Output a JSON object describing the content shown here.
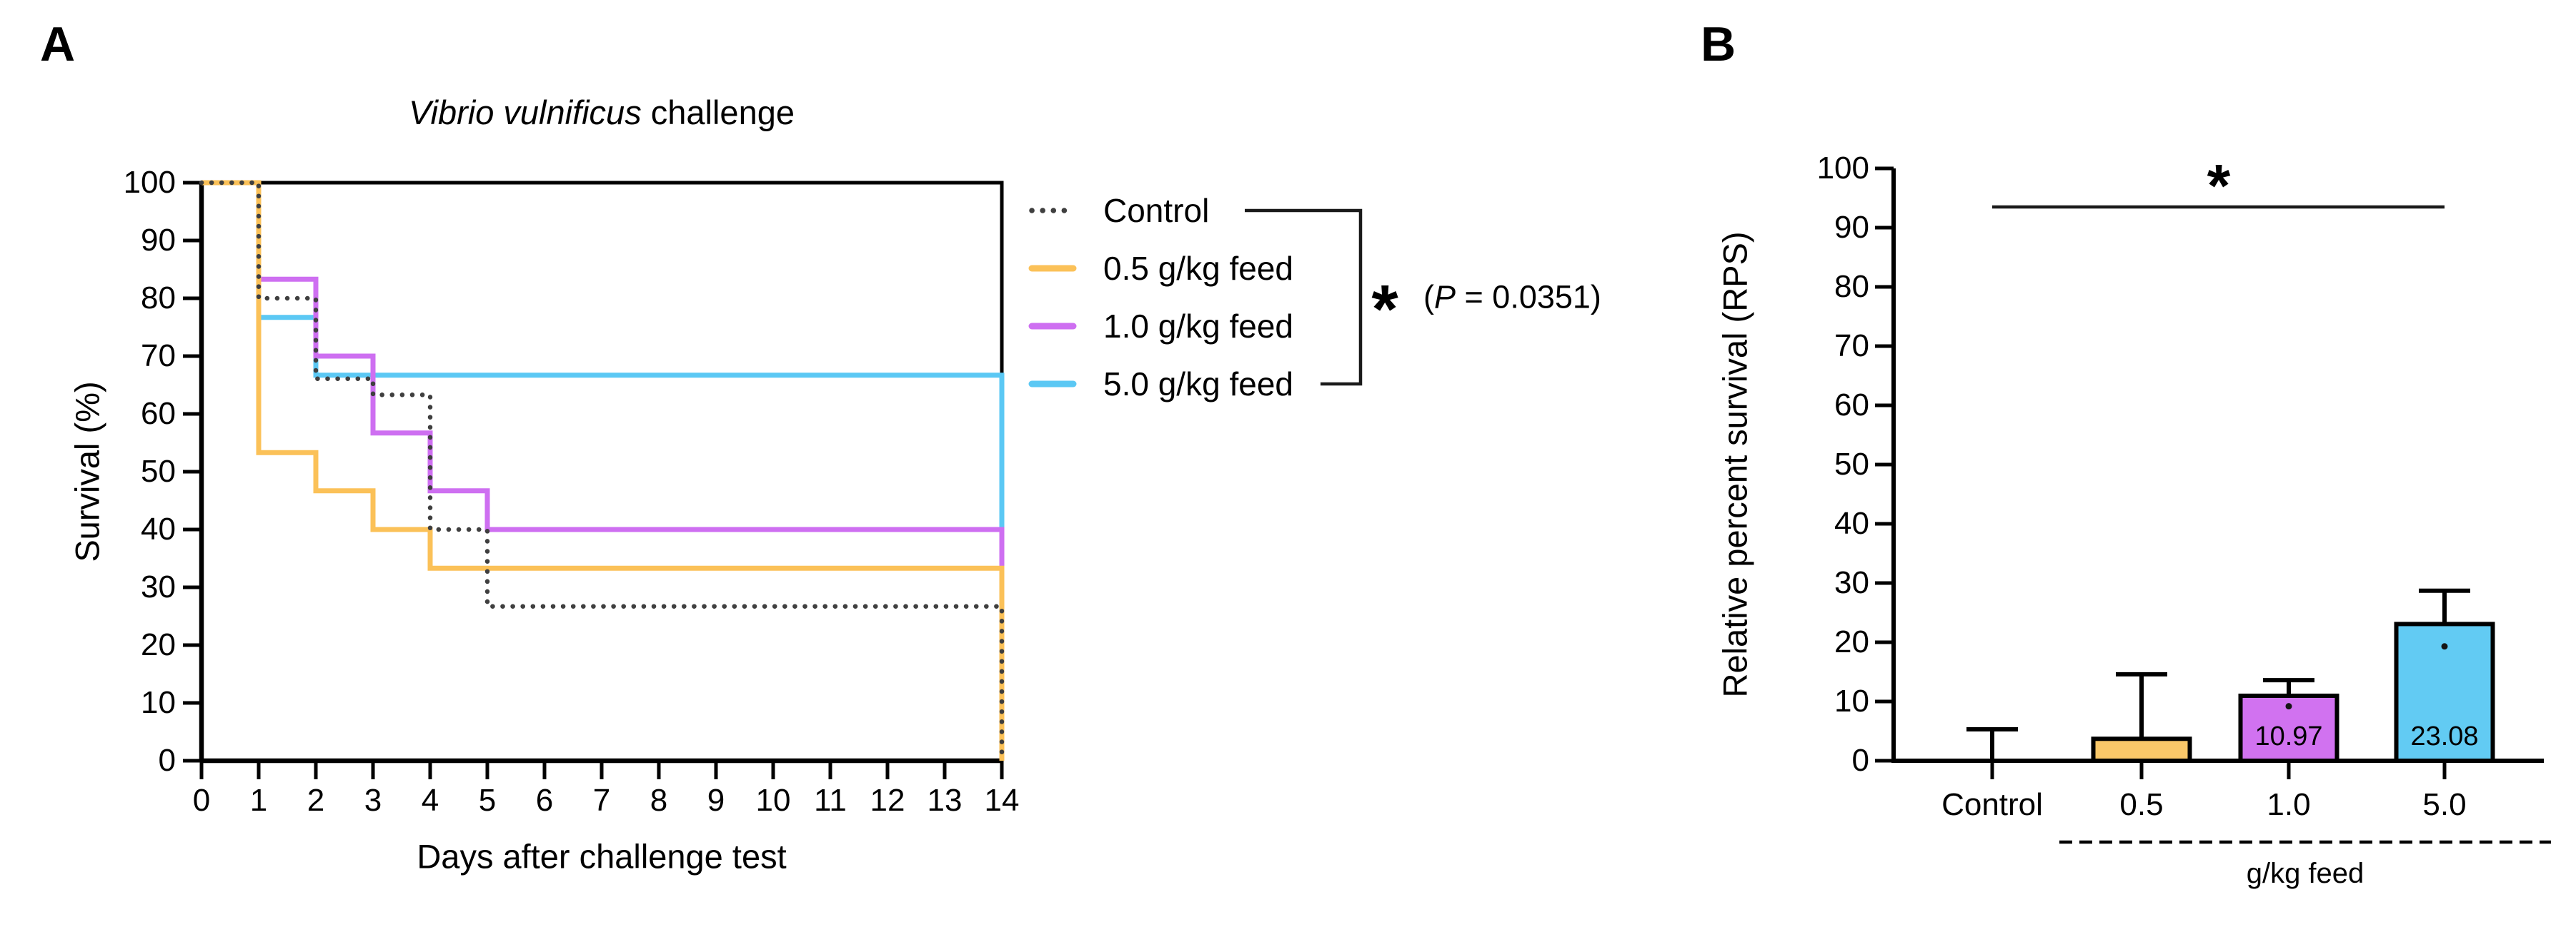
{
  "figure": {
    "panel_a": {
      "label": "A",
      "title_italic": "Vibrio vulnificus",
      "title_rest": " challenge",
      "xlabel": "Days after challenge test",
      "ylabel": "Survival (%)",
      "significance": {
        "asterisk": "*",
        "p_open": "(",
        "p_symbol": "P",
        "p_rest": " = 0.0351)"
      }
    },
    "panel_b": {
      "label": "B",
      "ylabel": "Relative percent survival (RPS)",
      "group_label": "g/kg feed",
      "significance": {
        "asterisk": "*"
      }
    }
  },
  "chart_data": [
    {
      "type": "line",
      "subtype": "kaplan-meier-step",
      "title": "Vibrio vulnificus challenge",
      "xlabel": "Days after challenge test",
      "ylabel": "Survival (%)",
      "xlim": [
        0,
        14
      ],
      "ylim": [
        0,
        100
      ],
      "x_ticks": [
        0,
        1,
        2,
        3,
        4,
        5,
        6,
        7,
        8,
        9,
        10,
        11,
        12,
        13,
        14
      ],
      "y_ticks": [
        0,
        10,
        20,
        30,
        40,
        50,
        60,
        70,
        80,
        90,
        100
      ],
      "grid": false,
      "frame": true,
      "legend_position": "right",
      "series": [
        {
          "name": "5.0 g/kg feed",
          "color": "#5BC8F4",
          "style": "solid",
          "points": [
            [
              0,
              100
            ],
            [
              1,
              100
            ],
            [
              1,
              76.7
            ],
            [
              2,
              76.7
            ],
            [
              2,
              66.7
            ],
            [
              14,
              66.7
            ],
            [
              14,
              0
            ]
          ]
        },
        {
          "name": "1.0 g/kg feed",
          "color": "#CE6FF1",
          "style": "solid",
          "points": [
            [
              0,
              100
            ],
            [
              1,
              100
            ],
            [
              1,
              83.3
            ],
            [
              2,
              83.3
            ],
            [
              2,
              70
            ],
            [
              3,
              70
            ],
            [
              3,
              56.7
            ],
            [
              4,
              56.7
            ],
            [
              4,
              46.7
            ],
            [
              5,
              46.7
            ],
            [
              5,
              40
            ],
            [
              14,
              40
            ],
            [
              14,
              0
            ]
          ]
        },
        {
          "name": "0.5 g/kg feed",
          "color": "#FBC158",
          "style": "solid",
          "points": [
            [
              0,
              100
            ],
            [
              1,
              100
            ],
            [
              1,
              53.3
            ],
            [
              2,
              53.3
            ],
            [
              2,
              46.7
            ],
            [
              3,
              46.7
            ],
            [
              3,
              40
            ],
            [
              4,
              40
            ],
            [
              4,
              33.3
            ],
            [
              14,
              33.3
            ],
            [
              14,
              0
            ]
          ]
        },
        {
          "name": "Control",
          "color": "#3F3F3F",
          "style": "dotted",
          "overlap_nudge_value": 66.7,
          "points": [
            [
              0,
              100
            ],
            [
              1,
              100
            ],
            [
              1,
              80
            ],
            [
              2,
              80
            ],
            [
              2,
              66.7
            ],
            [
              3,
              66.7
            ],
            [
              3,
              63.3
            ],
            [
              4,
              63.3
            ],
            [
              4,
              40
            ],
            [
              5,
              40
            ],
            [
              5,
              26.7
            ],
            [
              14,
              26.7
            ],
            [
              14,
              0
            ]
          ]
        }
      ],
      "legend_order": [
        "Control",
        "0.5 g/kg feed",
        "1.0 g/kg feed",
        "5.0 g/kg feed"
      ],
      "significance": {
        "groups": [
          "Control",
          "5.0 g/kg feed"
        ],
        "label": "*",
        "p_value": "P = 0.0351"
      }
    },
    {
      "type": "bar",
      "ylabel": "Relative percent survival (RPS)",
      "ylim": [
        0,
        100
      ],
      "y_ticks": [
        0,
        10,
        20,
        30,
        40,
        50,
        60,
        70,
        80,
        90,
        100
      ],
      "grid": false,
      "categories": [
        "Control",
        "0.5",
        "1.0",
        "5.0"
      ],
      "group_label": "g/kg feed",
      "values": [
        0,
        3.7,
        10.97,
        23.08
      ],
      "error_top": [
        5.3,
        14.6,
        13.6,
        28.7
      ],
      "bar_colors": [
        "none",
        "#FAC869",
        "#D172F0",
        "#62CBF3"
      ],
      "bar_value_labels": [
        "",
        "",
        "10.97",
        "23.08"
      ],
      "data_dots": [
        {
          "category_index": 2,
          "value": 9.2
        },
        {
          "category_index": 3,
          "value": 19.3
        }
      ],
      "significance": {
        "from": "Control",
        "to": "5.0",
        "label": "*",
        "line_y_value": 93.5
      }
    }
  ]
}
